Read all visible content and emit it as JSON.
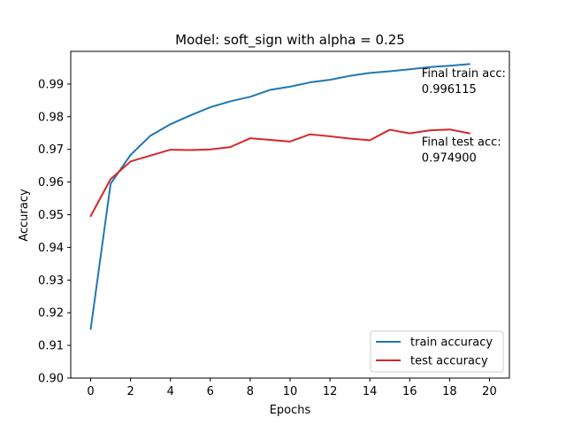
{
  "chart_data": {
    "type": "line",
    "title": "Model: soft_sign with alpha = 0.25",
    "xlabel": "Epochs",
    "ylabel": "Accuracy",
    "xlim": [
      -1,
      21
    ],
    "ylim": [
      0.9,
      1.0
    ],
    "xticks": [
      "0",
      "2",
      "4",
      "6",
      "8",
      "10",
      "12",
      "14",
      "16",
      "18",
      "20"
    ],
    "yticks": [
      "0.90",
      "0.91",
      "0.92",
      "0.93",
      "0.94",
      "0.95",
      "0.96",
      "0.97",
      "0.98",
      "0.99"
    ],
    "x": [
      0,
      1,
      2,
      3,
      4,
      5,
      6,
      7,
      8,
      9,
      10,
      11,
      12,
      13,
      14,
      15,
      16,
      17,
      18,
      19
    ],
    "grid": false,
    "legend_position": "lower-right",
    "series": [
      {
        "name": "train accuracy",
        "color": "#1f77b4",
        "values": [
          0.915,
          0.9595,
          0.9683,
          0.9742,
          0.9777,
          0.9804,
          0.9829,
          0.9847,
          0.9861,
          0.9882,
          0.9892,
          0.9905,
          0.9913,
          0.9925,
          0.9934,
          0.9939,
          0.9945,
          0.9952,
          0.9956,
          0.9961
        ]
      },
      {
        "name": "test accuracy",
        "color": "#d62728",
        "values": [
          0.9496,
          0.9609,
          0.9663,
          0.9681,
          0.9699,
          0.9698,
          0.97,
          0.9707,
          0.9734,
          0.9729,
          0.9724,
          0.9746,
          0.974,
          0.9733,
          0.9728,
          0.976,
          0.9749,
          0.9758,
          0.9761,
          0.9749
        ]
      }
    ],
    "annotations": [
      {
        "line1": "Final train acc:",
        "line2": "0.996115",
        "x": 16.6,
        "y": 0.991
      },
      {
        "line1": "Final test acc:",
        "line2": "0.974900",
        "x": 16.6,
        "y": 0.97
      }
    ]
  }
}
